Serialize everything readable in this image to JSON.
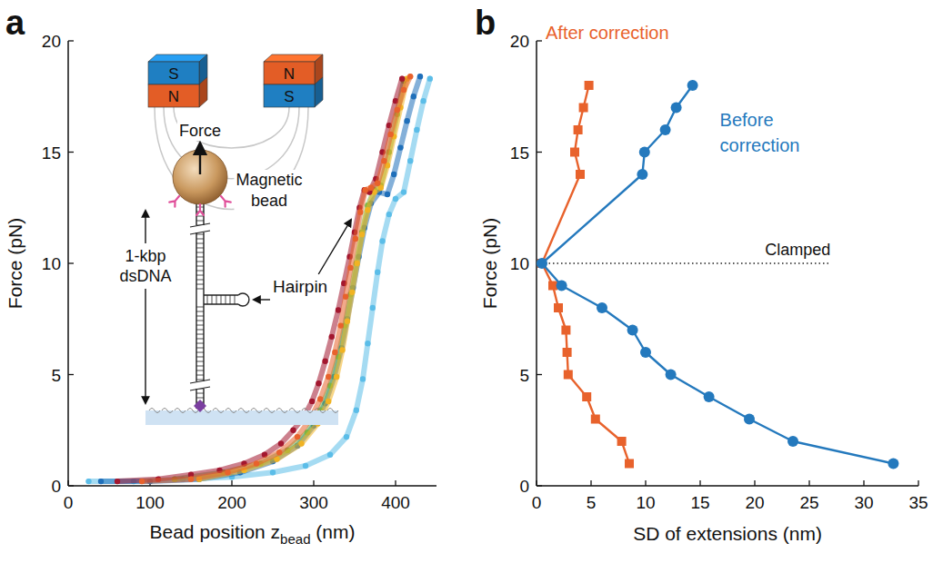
{
  "chart_data": [
    {
      "type": "scatter",
      "panel": "a",
      "marker": "dot",
      "x_label": {
        "main": "Bead position z",
        "sub": "bead",
        "unit": " (nm)"
      },
      "y_label": "Force (pN)",
      "xlim": [
        0,
        450
      ],
      "xticks": [
        0,
        100,
        200,
        300,
        400
      ],
      "ylim": [
        0,
        20
      ],
      "yticks": [
        0,
        5,
        10,
        15,
        20
      ],
      "annotations": {
        "magnet_left": [
          "S",
          "N"
        ],
        "magnet_right": [
          "N",
          "S"
        ],
        "force": "Force",
        "bead": "Magnetic bead",
        "dna": "1-kbp dsDNA",
        "hairpin": "Hairpin"
      },
      "series": [
        {
          "color": "#5bbde8",
          "line_style": "solid",
          "x": [
            25,
            80,
            140,
            200,
            250,
            290,
            320,
            340,
            352,
            360,
            366,
            372,
            378,
            384,
            392,
            400,
            410,
            418,
            426,
            434,
            442
          ],
          "values": [
            0.2,
            0.2,
            0.3,
            0.4,
            0.6,
            0.9,
            1.4,
            2.2,
            3.4,
            4.8,
            6.4,
            8.0,
            9.6,
            11.0,
            12.2,
            12.9,
            13.2,
            14.6,
            16.0,
            17.3,
            18.3
          ]
        },
        {
          "color": "#1f6fba",
          "line_style": "solid",
          "x": [
            40,
            100,
            160,
            210,
            250,
            280,
            300,
            314,
            325,
            334,
            341,
            348,
            355,
            362,
            370,
            380,
            390,
            398,
            406,
            414,
            422,
            430
          ],
          "values": [
            0.2,
            0.2,
            0.3,
            0.6,
            1.1,
            1.8,
            2.7,
            3.7,
            4.9,
            6.2,
            7.5,
            8.9,
            10.3,
            11.6,
            12.7,
            13.2,
            13.1,
            14.0,
            15.2,
            16.4,
            17.5,
            18.4
          ]
        },
        {
          "color": "#7ab648",
          "line_style": "solid",
          "x": [
            130,
            190,
            235,
            268,
            292,
            308,
            320,
            330,
            338,
            345,
            352,
            359,
            366,
            374,
            382,
            392,
            402,
            410
          ],
          "values": [
            0.3,
            0.6,
            1.0,
            1.6,
            2.4,
            3.4,
            4.5,
            5.8,
            7.2,
            8.6,
            10.0,
            11.4,
            12.6,
            13.3,
            13.5,
            15.0,
            16.7,
            18.2
          ]
        },
        {
          "color": "#f0b323",
          "line_style": "solid",
          "x": [
            160,
            215,
            255,
            285,
            305,
            318,
            328,
            335,
            341,
            347,
            353,
            359,
            366,
            374,
            382,
            390,
            398,
            406,
            414
          ],
          "values": [
            0.3,
            0.7,
            1.2,
            1.9,
            2.8,
            3.8,
            4.9,
            6.1,
            7.4,
            8.7,
            10.0,
            11.3,
            12.4,
            13.2,
            13.4,
            14.4,
            15.7,
            17.0,
            18.3
          ]
        },
        {
          "color": "#a3172f",
          "line_style": "solid",
          "x": [
            60,
            110,
            150,
            185,
            215,
            240,
            260,
            275,
            288,
            298,
            306,
            314,
            322,
            330,
            337,
            344,
            350,
            356,
            362,
            368,
            376,
            384,
            392,
            400,
            408
          ],
          "values": [
            0.2,
            0.3,
            0.5,
            0.7,
            1.0,
            1.4,
            1.9,
            2.5,
            3.1,
            3.8,
            4.6,
            5.6,
            6.7,
            7.9,
            9.1,
            10.3,
            11.4,
            12.5,
            13.3,
            13.2,
            13.8,
            15.0,
            16.2,
            17.3,
            18.3
          ]
        },
        {
          "color": "#e8622c",
          "line_style": "solid",
          "x": [
            90,
            150,
            195,
            230,
            258,
            280,
            296,
            308,
            318,
            326,
            333,
            339,
            345,
            351,
            357,
            363,
            370,
            378,
            386,
            394,
            402,
            410,
            418
          ],
          "values": [
            0.2,
            0.3,
            0.6,
            1.0,
            1.5,
            2.2,
            3.0,
            3.9,
            4.9,
            6.0,
            7.2,
            8.5,
            9.8,
            11.1,
            12.3,
            13.3,
            13.4,
            13.6,
            14.6,
            15.8,
            16.9,
            17.8,
            18.4
          ]
        }
      ]
    },
    {
      "type": "line",
      "panel": "b",
      "x_label": "SD of extensions (nm)",
      "y_label": "Force (pN)",
      "xlim": [
        0,
        35
      ],
      "xticks": [
        0,
        5,
        10,
        15,
        20,
        25,
        30,
        35
      ],
      "ylim": [
        0,
        20
      ],
      "yticks": [
        0,
        5,
        10,
        15,
        20
      ],
      "annotations": [
        {
          "text": "Clamped",
          "y": 10,
          "line_style": "dotted"
        }
      ],
      "series": [
        {
          "name": "After correction",
          "color": "#e8622c",
          "marker": "square",
          "line_style": "solid",
          "x": [
            8.5,
            7.8,
            5.4,
            4.6,
            2.9,
            2.8,
            2.7,
            2.0,
            1.5,
            0.5,
            4.0,
            3.5,
            3.8,
            4.3,
            4.8
          ],
          "values": [
            1,
            2,
            3,
            4,
            5,
            6,
            7,
            8,
            9,
            10,
            14,
            15,
            16,
            17,
            18
          ]
        },
        {
          "name": "Before correction",
          "color": "#2479bd",
          "marker": "circle",
          "line_style": "solid",
          "x": [
            32.7,
            23.5,
            19.5,
            15.8,
            12.3,
            10.0,
            8.8,
            6.0,
            2.3,
            0.5,
            9.7,
            9.9,
            11.8,
            12.8,
            14.3
          ],
          "values": [
            1,
            2,
            3,
            4,
            5,
            6,
            7,
            8,
            9,
            10,
            14,
            15,
            16,
            17,
            18
          ]
        }
      ]
    }
  ]
}
